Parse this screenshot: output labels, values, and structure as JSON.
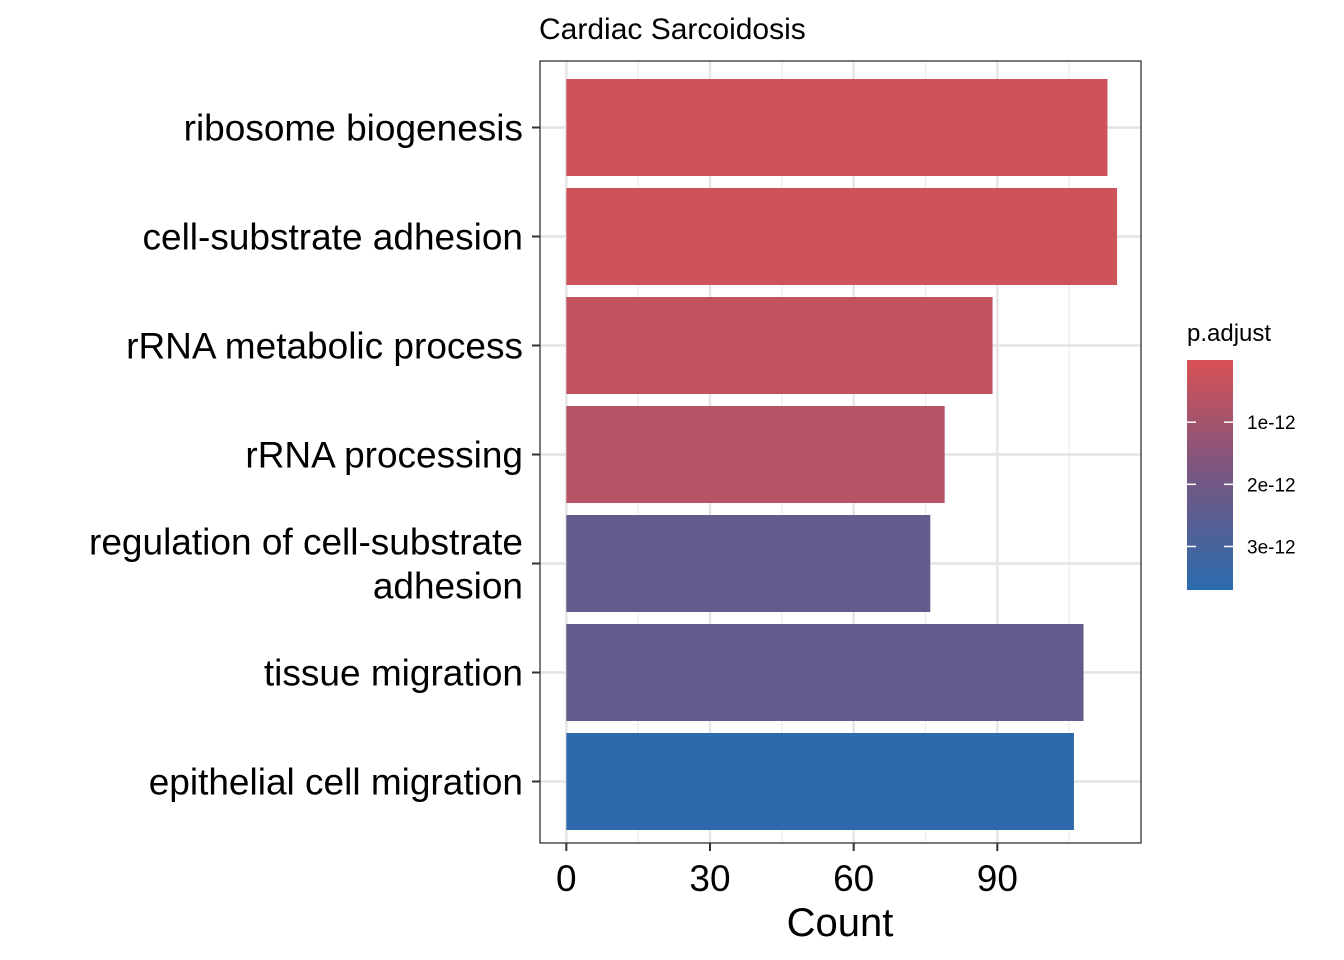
{
  "chart_data": {
    "type": "bar",
    "orientation": "horizontal",
    "title": "Cardiac Sarcoidosis",
    "xlabel": "Count",
    "ylabel": "",
    "xlim": [
      -5.5,
      120
    ],
    "xticks": [
      0,
      30,
      60,
      90
    ],
    "grid": true,
    "categories": [
      [
        "ribosome biogenesis"
      ],
      [
        "cell-substrate adhesion"
      ],
      [
        "rRNA metabolic process"
      ],
      [
        "rRNA processing"
      ],
      [
        "regulation of cell-substrate",
        "adhesion"
      ],
      [
        "tissue migration"
      ],
      [
        "epithelial cell migration"
      ]
    ],
    "values": [
      113,
      115,
      89,
      79,
      76,
      108,
      106
    ],
    "p_adjust": [
      2e-13,
      2e-13,
      4e-13,
      6.5e-13,
      2.3e-12,
      2.3e-12,
      3.6e-12
    ],
    "legend": {
      "title": "p.adjust",
      "position": "right",
      "ticks": [
        1e-12,
        2e-12,
        3e-12
      ],
      "tick_labels": [
        "1e-12",
        "2e-12",
        "3e-12"
      ],
      "range": [
        0,
        3.7e-12
      ],
      "color_low": "#d85155",
      "color_high": "#2a6bad"
    }
  }
}
